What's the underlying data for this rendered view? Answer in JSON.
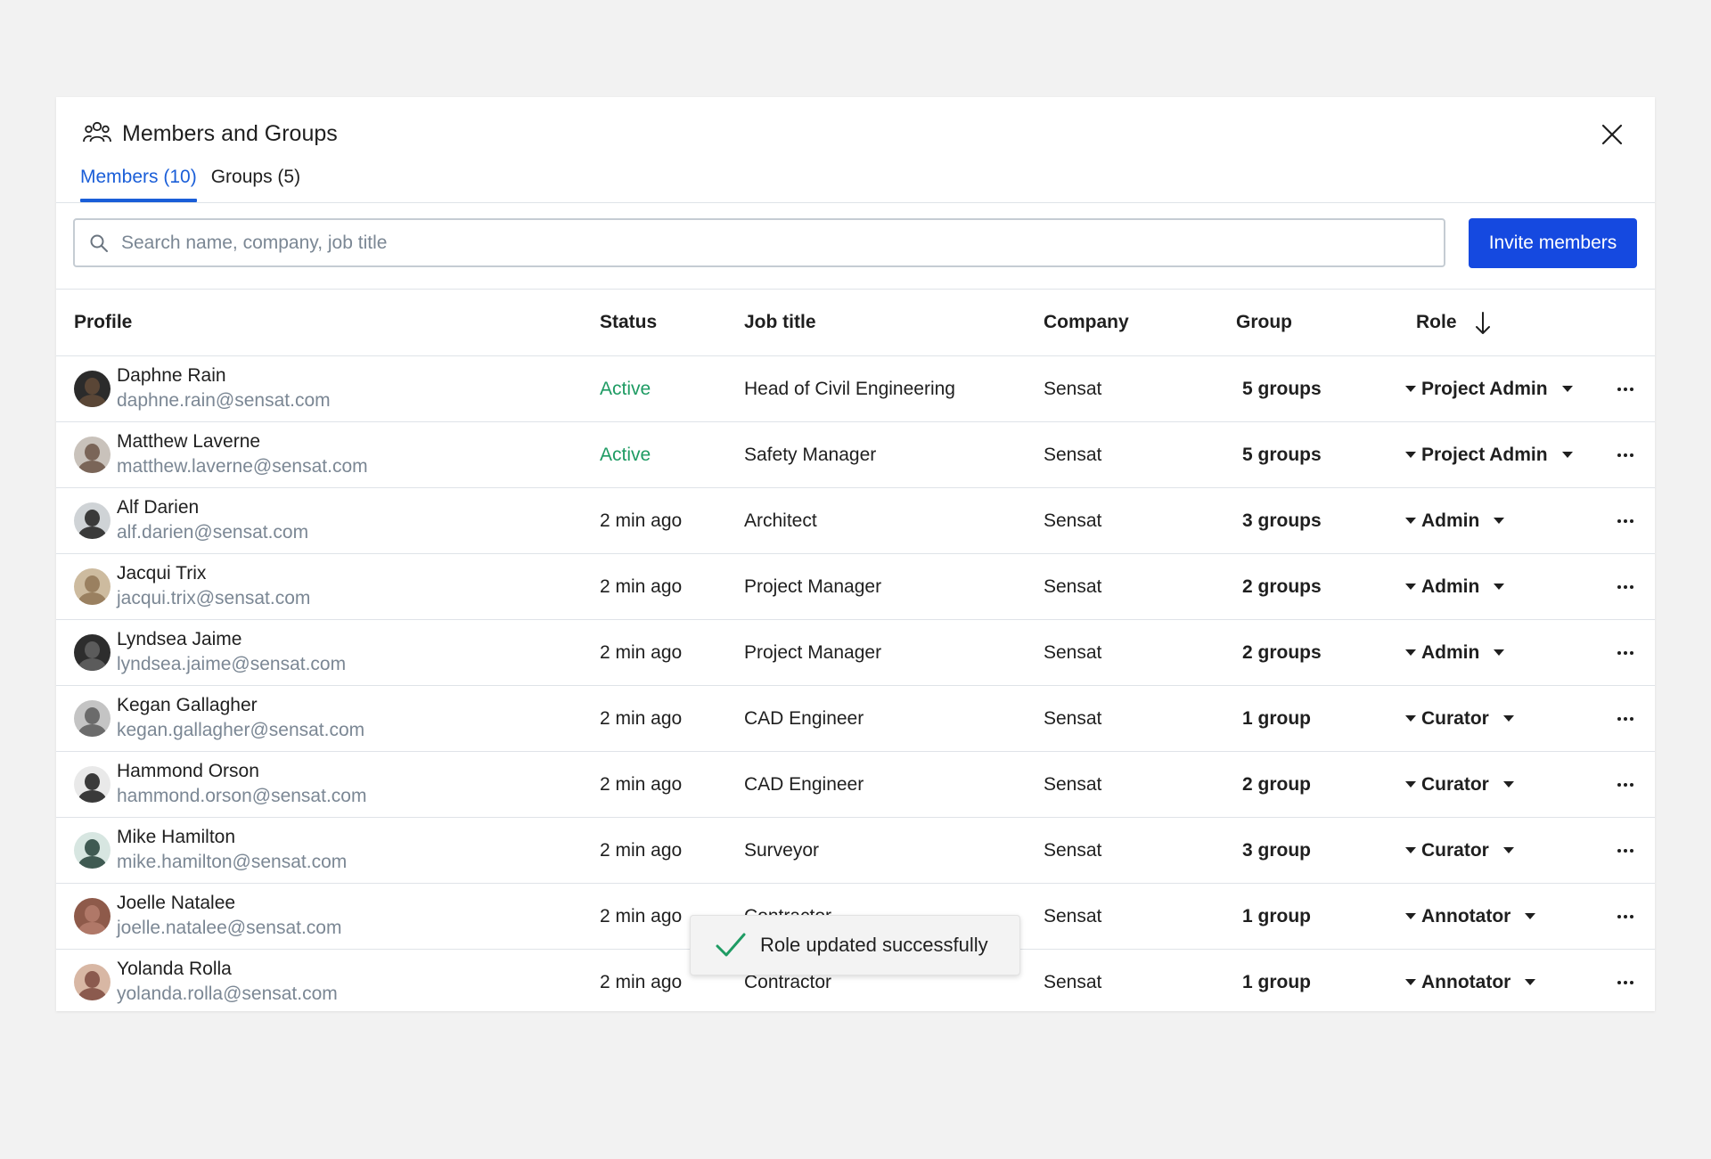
{
  "dialog": {
    "title": "Members and Groups",
    "title_icon": "people-icon",
    "close_icon": "close-icon"
  },
  "tabs": [
    {
      "label": "Members (10)",
      "active": true
    },
    {
      "label": "Groups (5)",
      "active": false
    }
  ],
  "search": {
    "icon": "search-icon",
    "placeholder": "Search name, company, job title",
    "value": ""
  },
  "invite_button": "Invite members",
  "table": {
    "columns": [
      "Profile",
      "Status",
      "Job title",
      "Company",
      "Group",
      "Role"
    ],
    "sort_icon": "arrow-down-icon",
    "rows": [
      {
        "name": "Daphne Rain",
        "email": "daphne.rain@sensat.com",
        "status": "Active",
        "job": "Head of Civil Engineering",
        "company": "Sensat",
        "group": "5 groups",
        "role": "Project Admin"
      },
      {
        "name": "Matthew Laverne",
        "email": "matthew.laverne@sensat.com",
        "status": "Active",
        "job": "Safety Manager",
        "company": "Sensat",
        "group": "5 groups",
        "role": "Project Admin"
      },
      {
        "name": "Alf Darien",
        "email": "alf.darien@sensat.com",
        "status": "2 min ago",
        "job": "Architect",
        "company": "Sensat",
        "group": "3 groups",
        "role": "Admin"
      },
      {
        "name": "Jacqui Trix",
        "email": "jacqui.trix@sensat.com",
        "status": "2 min ago",
        "job": "Project Manager",
        "company": "Sensat",
        "group": "2 groups",
        "role": "Admin"
      },
      {
        "name": "Lyndsea Jaime",
        "email": "lyndsea.jaime@sensat.com",
        "status": "2 min ago",
        "job": "Project Manager",
        "company": "Sensat",
        "group": "2 groups",
        "role": "Admin"
      },
      {
        "name": "Kegan Gallagher",
        "email": "kegan.gallagher@sensat.com",
        "status": "2 min ago",
        "job": "CAD Engineer",
        "company": "Sensat",
        "group": "1 group",
        "role": "Curator"
      },
      {
        "name": "Hammond Orson",
        "email": "hammond.orson@sensat.com",
        "status": "2 min ago",
        "job": "CAD Engineer",
        "company": "Sensat",
        "group": "2 group",
        "role": "Curator"
      },
      {
        "name": "Mike Hamilton",
        "email": "mike.hamilton@sensat.com",
        "status": "2 min ago",
        "job": "Surveyor",
        "company": "Sensat",
        "group": "3 group",
        "role": "Curator"
      },
      {
        "name": "Joelle Natalee",
        "email": "joelle.natalee@sensat.com",
        "status": "2 min ago",
        "job": "Contractor",
        "company": "Sensat",
        "group": "1 group",
        "role": "Annotator"
      },
      {
        "name": "Yolanda Rolla",
        "email": "yolanda.rolla@sensat.com",
        "status": "2 min ago",
        "job": "Contractor",
        "company": "Sensat",
        "group": "1 group",
        "role": "Annotator"
      }
    ]
  },
  "toast": {
    "icon": "checkmark-icon",
    "message": "Role updated successfully"
  },
  "colors": {
    "accent": "#1a5ed8",
    "button": "#1549e0",
    "active_status": "#1e9b63",
    "secondary_text": "#7b8794"
  }
}
